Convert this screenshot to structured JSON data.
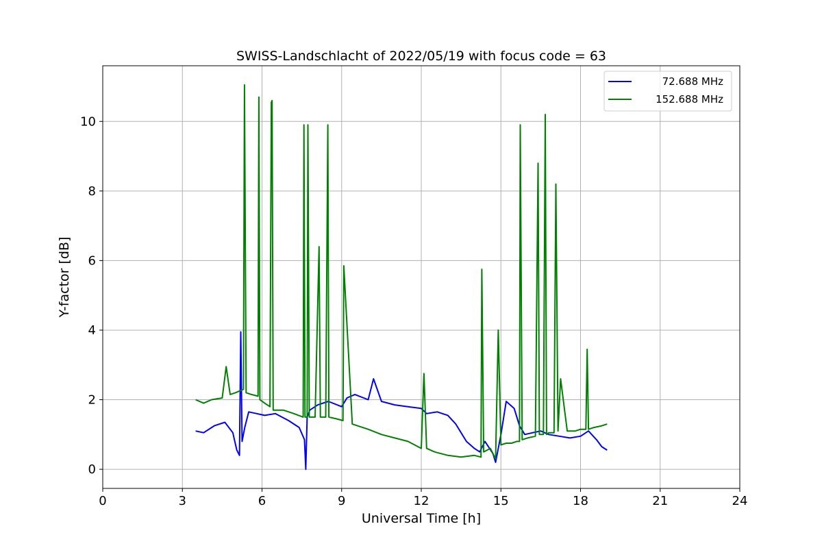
{
  "chart_data": {
    "type": "line",
    "title": "SWISS-Landschlacht of 2022/05/19 with focus code = 63",
    "xlabel": "Universal Time [h]",
    "ylabel": "Y-factor [dB]",
    "xlim": [
      0,
      24
    ],
    "ylim": [
      -0.55,
      11.6
    ],
    "xticks": [
      0,
      3,
      6,
      9,
      12,
      15,
      18,
      21,
      24
    ],
    "yticks": [
      0,
      2,
      4,
      6,
      8,
      10
    ],
    "grid": true,
    "legend_position": "top-right",
    "series": [
      {
        "name": "72.688 MHz",
        "color": "#0000ff",
        "x": [
          3.5,
          3.8,
          4.2,
          4.6,
          4.9,
          5.05,
          5.15,
          5.2,
          5.25,
          5.35,
          5.5,
          5.8,
          6.1,
          6.5,
          7.0,
          7.4,
          7.6,
          7.65,
          7.7,
          7.8,
          8.1,
          8.5,
          9.0,
          9.2,
          9.5,
          10.0,
          10.2,
          10.5,
          11.0,
          11.5,
          12.0,
          12.2,
          12.6,
          13.0,
          13.3,
          13.5,
          13.7,
          14.0,
          14.2,
          14.4,
          14.7,
          14.8,
          15.0,
          15.2,
          15.5,
          15.7,
          15.9,
          16.2,
          16.5,
          16.8,
          17.2,
          17.6,
          18.0,
          18.3,
          18.6,
          18.8,
          19.0
        ],
        "y": [
          1.1,
          1.05,
          1.25,
          1.35,
          1.05,
          0.55,
          0.4,
          3.95,
          0.8,
          1.2,
          1.65,
          1.6,
          1.55,
          1.6,
          1.4,
          1.2,
          0.85,
          0.0,
          1.5,
          1.7,
          1.85,
          1.95,
          1.8,
          2.05,
          2.15,
          2.0,
          2.6,
          1.95,
          1.85,
          1.8,
          1.75,
          1.6,
          1.65,
          1.55,
          1.3,
          1.05,
          0.8,
          0.6,
          0.5,
          0.8,
          0.45,
          0.2,
          1.0,
          1.95,
          1.75,
          1.25,
          1.0,
          1.05,
          1.1,
          1.0,
          0.95,
          0.9,
          0.95,
          1.1,
          0.85,
          0.65,
          0.55
        ]
      },
      {
        "name": "152.688 MHz",
        "color": "#008000",
        "x": [
          3.5,
          3.8,
          4.1,
          4.5,
          4.65,
          4.8,
          5.0,
          5.3,
          5.34,
          5.4,
          5.6,
          5.85,
          5.88,
          5.92,
          6.1,
          6.3,
          6.35,
          6.38,
          6.42,
          6.8,
          7.2,
          7.55,
          7.58,
          7.62,
          7.7,
          7.73,
          7.78,
          8.0,
          8.15,
          8.2,
          8.4,
          8.48,
          8.52,
          8.8,
          9.05,
          9.08,
          9.4,
          10.0,
          10.5,
          11.0,
          11.5,
          12.0,
          12.1,
          12.2,
          12.5,
          13.0,
          13.5,
          14.0,
          14.25,
          14.28,
          14.35,
          14.6,
          14.8,
          14.9,
          15.0,
          15.2,
          15.4,
          15.6,
          15.7,
          15.73,
          15.8,
          16.0,
          16.3,
          16.4,
          16.45,
          16.6,
          16.67,
          16.72,
          16.8,
          17.0,
          17.07,
          17.15,
          17.25,
          17.5,
          17.8,
          18.0,
          18.2,
          18.25,
          18.3,
          18.5,
          18.8,
          19.0
        ],
        "y": [
          2.0,
          1.9,
          2.0,
          2.05,
          2.95,
          2.15,
          2.2,
          2.3,
          11.05,
          2.2,
          2.15,
          2.1,
          10.7,
          2.0,
          1.9,
          1.8,
          10.55,
          10.6,
          1.7,
          1.7,
          1.6,
          1.5,
          9.9,
          1.5,
          1.5,
          9.9,
          1.5,
          1.5,
          6.4,
          1.5,
          1.5,
          9.9,
          1.5,
          1.45,
          1.4,
          5.85,
          1.3,
          1.15,
          1.0,
          0.9,
          0.8,
          0.6,
          2.75,
          0.6,
          0.5,
          0.4,
          0.35,
          0.4,
          0.35,
          5.75,
          0.5,
          0.6,
          0.3,
          4.0,
          0.7,
          0.75,
          0.75,
          0.8,
          0.8,
          9.9,
          0.85,
          0.9,
          0.95,
          8.8,
          1.0,
          1.0,
          10.2,
          1.0,
          1.05,
          1.05,
          8.2,
          1.1,
          2.6,
          1.1,
          1.1,
          1.15,
          1.15,
          3.45,
          1.15,
          1.2,
          1.25,
          1.3
        ]
      }
    ]
  }
}
